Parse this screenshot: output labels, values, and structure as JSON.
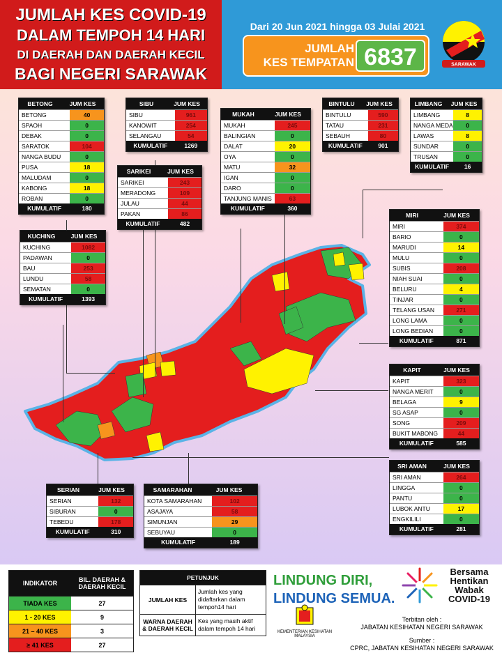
{
  "header": {
    "title_lines": [
      "JUMLAH KES COVID-19",
      "DALAM TEMPOH 14 HARI",
      "DI DAERAH DAN DAERAH KECIL",
      "BAGI NEGERI SARAWAK"
    ],
    "date_range": "Dari 20 Jun 2021 hingga 03 Julai 2021",
    "total_label_1": "JUMLAH",
    "total_label_2": "KES TEMPATAN",
    "total_value": "6837",
    "flag_caption": "SARAWAK"
  },
  "colors": {
    "red": "#e41e1e",
    "green": "#3cb44a",
    "yellow": "#fff200",
    "orange": "#f7941d"
  },
  "tables": {
    "betong": {
      "title": "BETONG",
      "col": "JUM KES",
      "rows": [
        [
          "BETONG",
          "40",
          "o"
        ],
        [
          "SPAOH",
          "0",
          "g"
        ],
        [
          "DEBAK",
          "0",
          "g"
        ],
        [
          "SARATOK",
          "104",
          "r"
        ],
        [
          "NANGA BUDU",
          "0",
          "g"
        ],
        [
          "PUSA",
          "18",
          "y"
        ],
        [
          "MALUDAM",
          "0",
          "g"
        ],
        [
          "KABONG",
          "18",
          "y"
        ],
        [
          "ROBAN",
          "0",
          "g"
        ]
      ],
      "total_label": "KUMULATIF",
      "total": "180"
    },
    "sibu": {
      "title": "SIBU",
      "col": "JUM KES",
      "rows": [
        [
          "SIBU",
          "961",
          "r"
        ],
        [
          "KANOWIT",
          "254",
          "r"
        ],
        [
          "SELANGAU",
          "54",
          "r"
        ]
      ],
      "total_label": "KUMULATIF",
      "total": "1269"
    },
    "sarikei": {
      "title": "SARIKEI",
      "col": "JUM KES",
      "rows": [
        [
          "SARIKEI",
          "243",
          "r"
        ],
        [
          "MERADONG",
          "109",
          "r"
        ],
        [
          "JULAU",
          "44",
          "r"
        ],
        [
          "PAKAN",
          "86",
          "r"
        ]
      ],
      "total_label": "KUMULATIF",
      "total": "482"
    },
    "mukah": {
      "title": "MUKAH",
      "col": "JUM KES",
      "rows": [
        [
          "MUKAH",
          "245",
          "r"
        ],
        [
          "BALINGIAN",
          "0",
          "g"
        ],
        [
          "DALAT",
          "20",
          "y"
        ],
        [
          "OYA",
          "0",
          "g"
        ],
        [
          "MATU",
          "32",
          "o"
        ],
        [
          "IGAN",
          "0",
          "g"
        ],
        [
          "DARO",
          "0",
          "g"
        ],
        [
          "TANJUNG MANIS",
          "63",
          "r"
        ]
      ],
      "total_label": "KUMULATIF",
      "total": "360"
    },
    "bintulu": {
      "title": "BINTULU",
      "col": "JUM KES",
      "rows": [
        [
          "BINTULU",
          "590",
          "r"
        ],
        [
          "TATAU",
          "231",
          "r"
        ],
        [
          "SEBAUH",
          "80",
          "r"
        ]
      ],
      "total_label": "KUMULATIF",
      "total": "901"
    },
    "limbang": {
      "title": "LIMBANG",
      "col": "JUM KES",
      "rows": [
        [
          "LIMBANG",
          "8",
          "y"
        ],
        [
          "NANGA MEDAMIT",
          "0",
          "g"
        ],
        [
          "LAWAS",
          "8",
          "y"
        ],
        [
          "SUNDAR",
          "0",
          "g"
        ],
        [
          "TRUSAN",
          "0",
          "g"
        ]
      ],
      "total_label": "KUMULATIF",
      "total": "16"
    },
    "kuching": {
      "title": "KUCHING",
      "col": "JUM KES",
      "rows": [
        [
          "KUCHING",
          "1082",
          "r"
        ],
        [
          "PADAWAN",
          "0",
          "g"
        ],
        [
          "BAU",
          "253",
          "r"
        ],
        [
          "LUNDU",
          "58",
          "r"
        ],
        [
          "SEMATAN",
          "0",
          "g"
        ]
      ],
      "total_label": "KUMULATIF",
      "total": "1393"
    },
    "miri": {
      "title": "MIRI",
      "col": "JUM KES",
      "rows": [
        [
          "MIRI",
          "374",
          "r"
        ],
        [
          "BARIO",
          "0",
          "g"
        ],
        [
          "MARUDI",
          "14",
          "y"
        ],
        [
          "MULU",
          "0",
          "g"
        ],
        [
          "SUBIS",
          "208",
          "r"
        ],
        [
          "NIAH SUAI",
          "0",
          "g"
        ],
        [
          "BELURU",
          "4",
          "y"
        ],
        [
          "TINJAR",
          "0",
          "g"
        ],
        [
          "TELANG USAN",
          "271",
          "r"
        ],
        [
          "LONG LAMA",
          "0",
          "g"
        ],
        [
          "LONG BEDIAN",
          "0",
          "g"
        ]
      ],
      "total_label": "KUMULATIF",
      "total": "871"
    },
    "kapit": {
      "title": "KAPIT",
      "col": "JUM KES",
      "rows": [
        [
          "KAPIT",
          "323",
          "r"
        ],
        [
          "NANGA MERIT",
          "0",
          "g"
        ],
        [
          "BELAGA",
          "9",
          "y"
        ],
        [
          "SG ASAP",
          "0",
          "g"
        ],
        [
          "SONG",
          "209",
          "r"
        ],
        [
          "BUKIT MABONG",
          "44",
          "r"
        ]
      ],
      "total_label": "KUMULATIF",
      "total": "585"
    },
    "sriaman": {
      "title": "SRI AMAN",
      "col": "JUM KES",
      "rows": [
        [
          "SRI AMAN",
          "264",
          "r"
        ],
        [
          "LINGGA",
          "0",
          "g"
        ],
        [
          "PANTU",
          "0",
          "g"
        ],
        [
          "LUBOK ANTU",
          "17",
          "y"
        ],
        [
          "ENGKILILI",
          "0",
          "g"
        ]
      ],
      "total_label": "KUMULATIF",
      "total": "281"
    },
    "serian": {
      "title": "SERIAN",
      "col": "JUM KES",
      "rows": [
        [
          "SERIAN",
          "132",
          "r"
        ],
        [
          "SIBURAN",
          "0",
          "g"
        ],
        [
          "TEBEDU",
          "178",
          "r"
        ]
      ],
      "total_label": "KUMULATIF",
      "total": "310"
    },
    "samarahan": {
      "title": "SAMARAHAN",
      "col": "JUM KES",
      "rows": [
        [
          "KOTA SAMARAHAN",
          "102",
          "r"
        ],
        [
          "ASAJAYA",
          "58",
          "r"
        ],
        [
          "SIMUNJAN",
          "29",
          "o"
        ],
        [
          "SEBUYAU",
          "0",
          "g"
        ]
      ],
      "total_label": "KUMULATIF",
      "total": "189"
    }
  },
  "indicator": {
    "h1": "INDIKATOR",
    "h2": "BIL. DAERAH & DAERAH KECIL",
    "rows": [
      [
        "TIADA KES",
        "27",
        "g"
      ],
      [
        "1 - 20 KES",
        "9",
        "y"
      ],
      [
        "21 – 40 KES",
        "3",
        "o"
      ],
      [
        "≥ 41 KES",
        "27",
        "r"
      ]
    ]
  },
  "petunjuk": {
    "title": "PETUNJUK",
    "rows": [
      [
        "JUMLAH KES",
        "Jumlah kes yang didaftarkan dalam tempoh14 hari"
      ],
      [
        "WARNA DAERAH & DAERAH KECIL",
        "Kes yang masih aktif dalam tempoh 14 hari"
      ]
    ]
  },
  "footer": {
    "slogan1": "LINDUNG DIRI,",
    "slogan2": "LINDUNG SEMUA.",
    "bersama": "Bersama Hentikan Wabak COVID-19",
    "terbitan_label": "Terbitan oleh :",
    "terbitan": "JABATAN KESIHATAN NEGERI SARAWAK",
    "sumber_label": "Sumber :",
    "sumber": "CPRC, JABATAN KESIHATAN NEGERI SARAWAK",
    "kkm": "KEMENTERIAN KESIHATAN MALAYSIA"
  }
}
